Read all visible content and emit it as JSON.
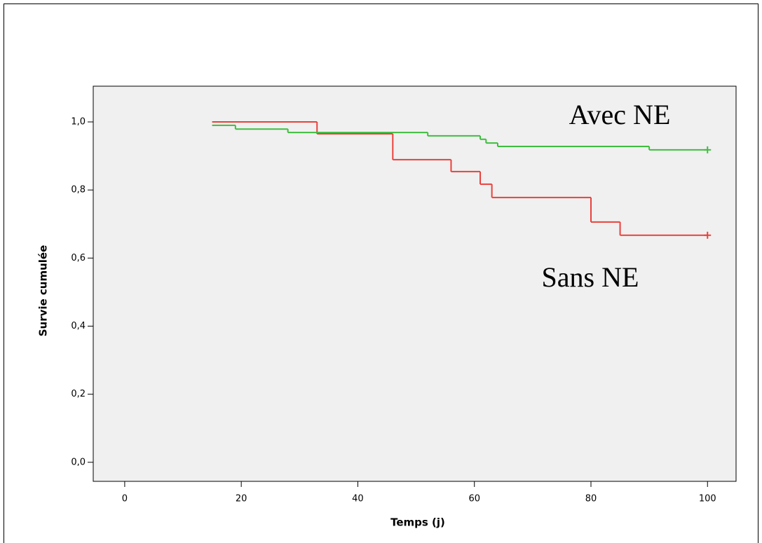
{
  "chart_data": {
    "type": "step",
    "x_label": "Temps (j)",
    "y_label": "Survie cumulée",
    "xlim": [
      -5.4,
      104.9
    ],
    "ylim": [
      -0.056,
      1.105
    ],
    "xticks": [
      0,
      20,
      40,
      60,
      80,
      100
    ],
    "yticks": [
      {
        "value": 0,
        "label": "0,0"
      },
      {
        "value": 0.2,
        "label": "0,2"
      },
      {
        "value": 0.4,
        "label": "0,4"
      },
      {
        "value": 0.6,
        "label": "0,6"
      },
      {
        "value": 0.8,
        "label": "0,8"
      },
      {
        "value": 1,
        "label": "1,0"
      }
    ],
    "censor_at_end": true,
    "series": [
      {
        "name": "Sans NE",
        "color": "#e8413c",
        "x": [
          15,
          33,
          46,
          56,
          61,
          63,
          80,
          85,
          100
        ],
        "values": [
          1,
          0.965,
          0.889,
          0.854,
          0.817,
          0.778,
          0.706,
          0.667,
          0.667
        ]
      },
      {
        "name": "Avec NE",
        "color": "#3ebd3e",
        "x": [
          15,
          19,
          28,
          52,
          61,
          62,
          64,
          90,
          100
        ],
        "values": [
          0.99,
          0.979,
          0.969,
          0.959,
          0.949,
          0.938,
          0.928,
          0.918,
          0.918
        ]
      }
    ]
  }
}
